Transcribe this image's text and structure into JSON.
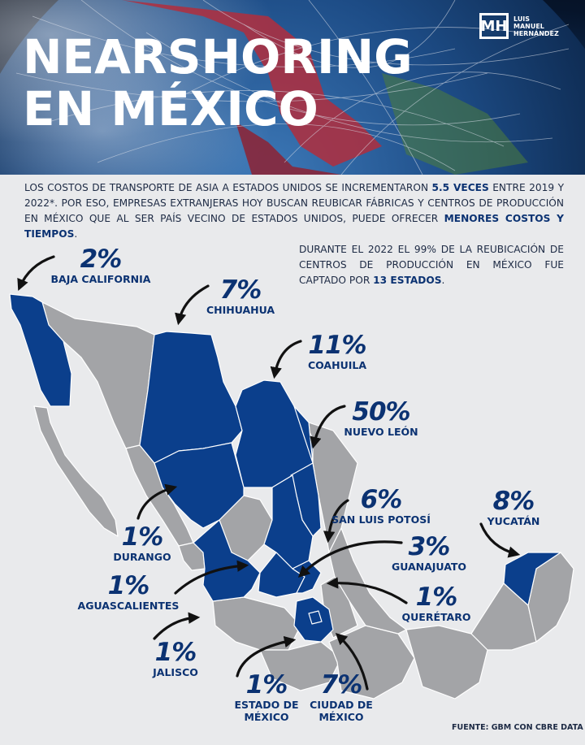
{
  "header": {
    "title_line1": "NEARSHORING",
    "title_line2": "EN MÉXICO",
    "logo": {
      "mark": "MH",
      "line1": "LUIS",
      "line2": "MANUEL",
      "line3": "HERNÁNDEZ"
    }
  },
  "intro": {
    "part1": "LOS COSTOS DE TRANSPORTE DE ASIA A ESTADOS UNIDOS SE INCREMENTARON ",
    "highlight1": "5.5 VECES",
    "part2": " ENTRE 2019 Y 2022*. POR ESO, EMPRESAS EXTRANJERAS HOY BUSCAN REUBICAR FÁBRICAS Y CENTROS DE PRODUCCIÓN EN MÉXICO QUE AL SER PAÍS VECINO DE ESTADOS UNIDOS, PUEDE OFRECER ",
    "highlight2": "MENORES COSTOS Y TIEMPOS",
    "part3": "."
  },
  "side_note": {
    "part1": "DURANTE EL 2022 EL 99% DE LA REUBICACIÓN DE CENTROS DE PRODUCCIÓN EN MÉXICO FUE CAPTADO POR ",
    "highlight": "13 ESTADOS",
    "part2": "."
  },
  "colors": {
    "highlighted_state": "#0b3f8c",
    "other_state": "#a3a4a7",
    "background": "#e9eaec",
    "text_accent": "#0b3272"
  },
  "states": [
    {
      "pct": "2%",
      "name": "BAJA CALIFORNIA"
    },
    {
      "pct": "7%",
      "name": "CHIHUAHUA"
    },
    {
      "pct": "11%",
      "name": "COAHUILA"
    },
    {
      "pct": "50%",
      "name": "NUEVO LEÓN"
    },
    {
      "pct": "6%",
      "name": "SAN LUIS POTOSÍ"
    },
    {
      "pct": "8%",
      "name": "YUCATÁN"
    },
    {
      "pct": "3%",
      "name": "GUANAJUATO"
    },
    {
      "pct": "1%",
      "name": "QUERÉTARO"
    },
    {
      "pct": "1%",
      "name": "DURANGO"
    },
    {
      "pct": "1%",
      "name": "AGUASCALIENTES"
    },
    {
      "pct": "1%",
      "name": "JALISCO"
    },
    {
      "pct": "1%",
      "name_line1": "ESTADO DE",
      "name_line2": "MÉXICO"
    },
    {
      "pct": "7%",
      "name_line1": "CIUDAD DE",
      "name_line2": "MÉXICO"
    }
  ],
  "footer": "FUENTE: GBM CON CBRE DATA"
}
